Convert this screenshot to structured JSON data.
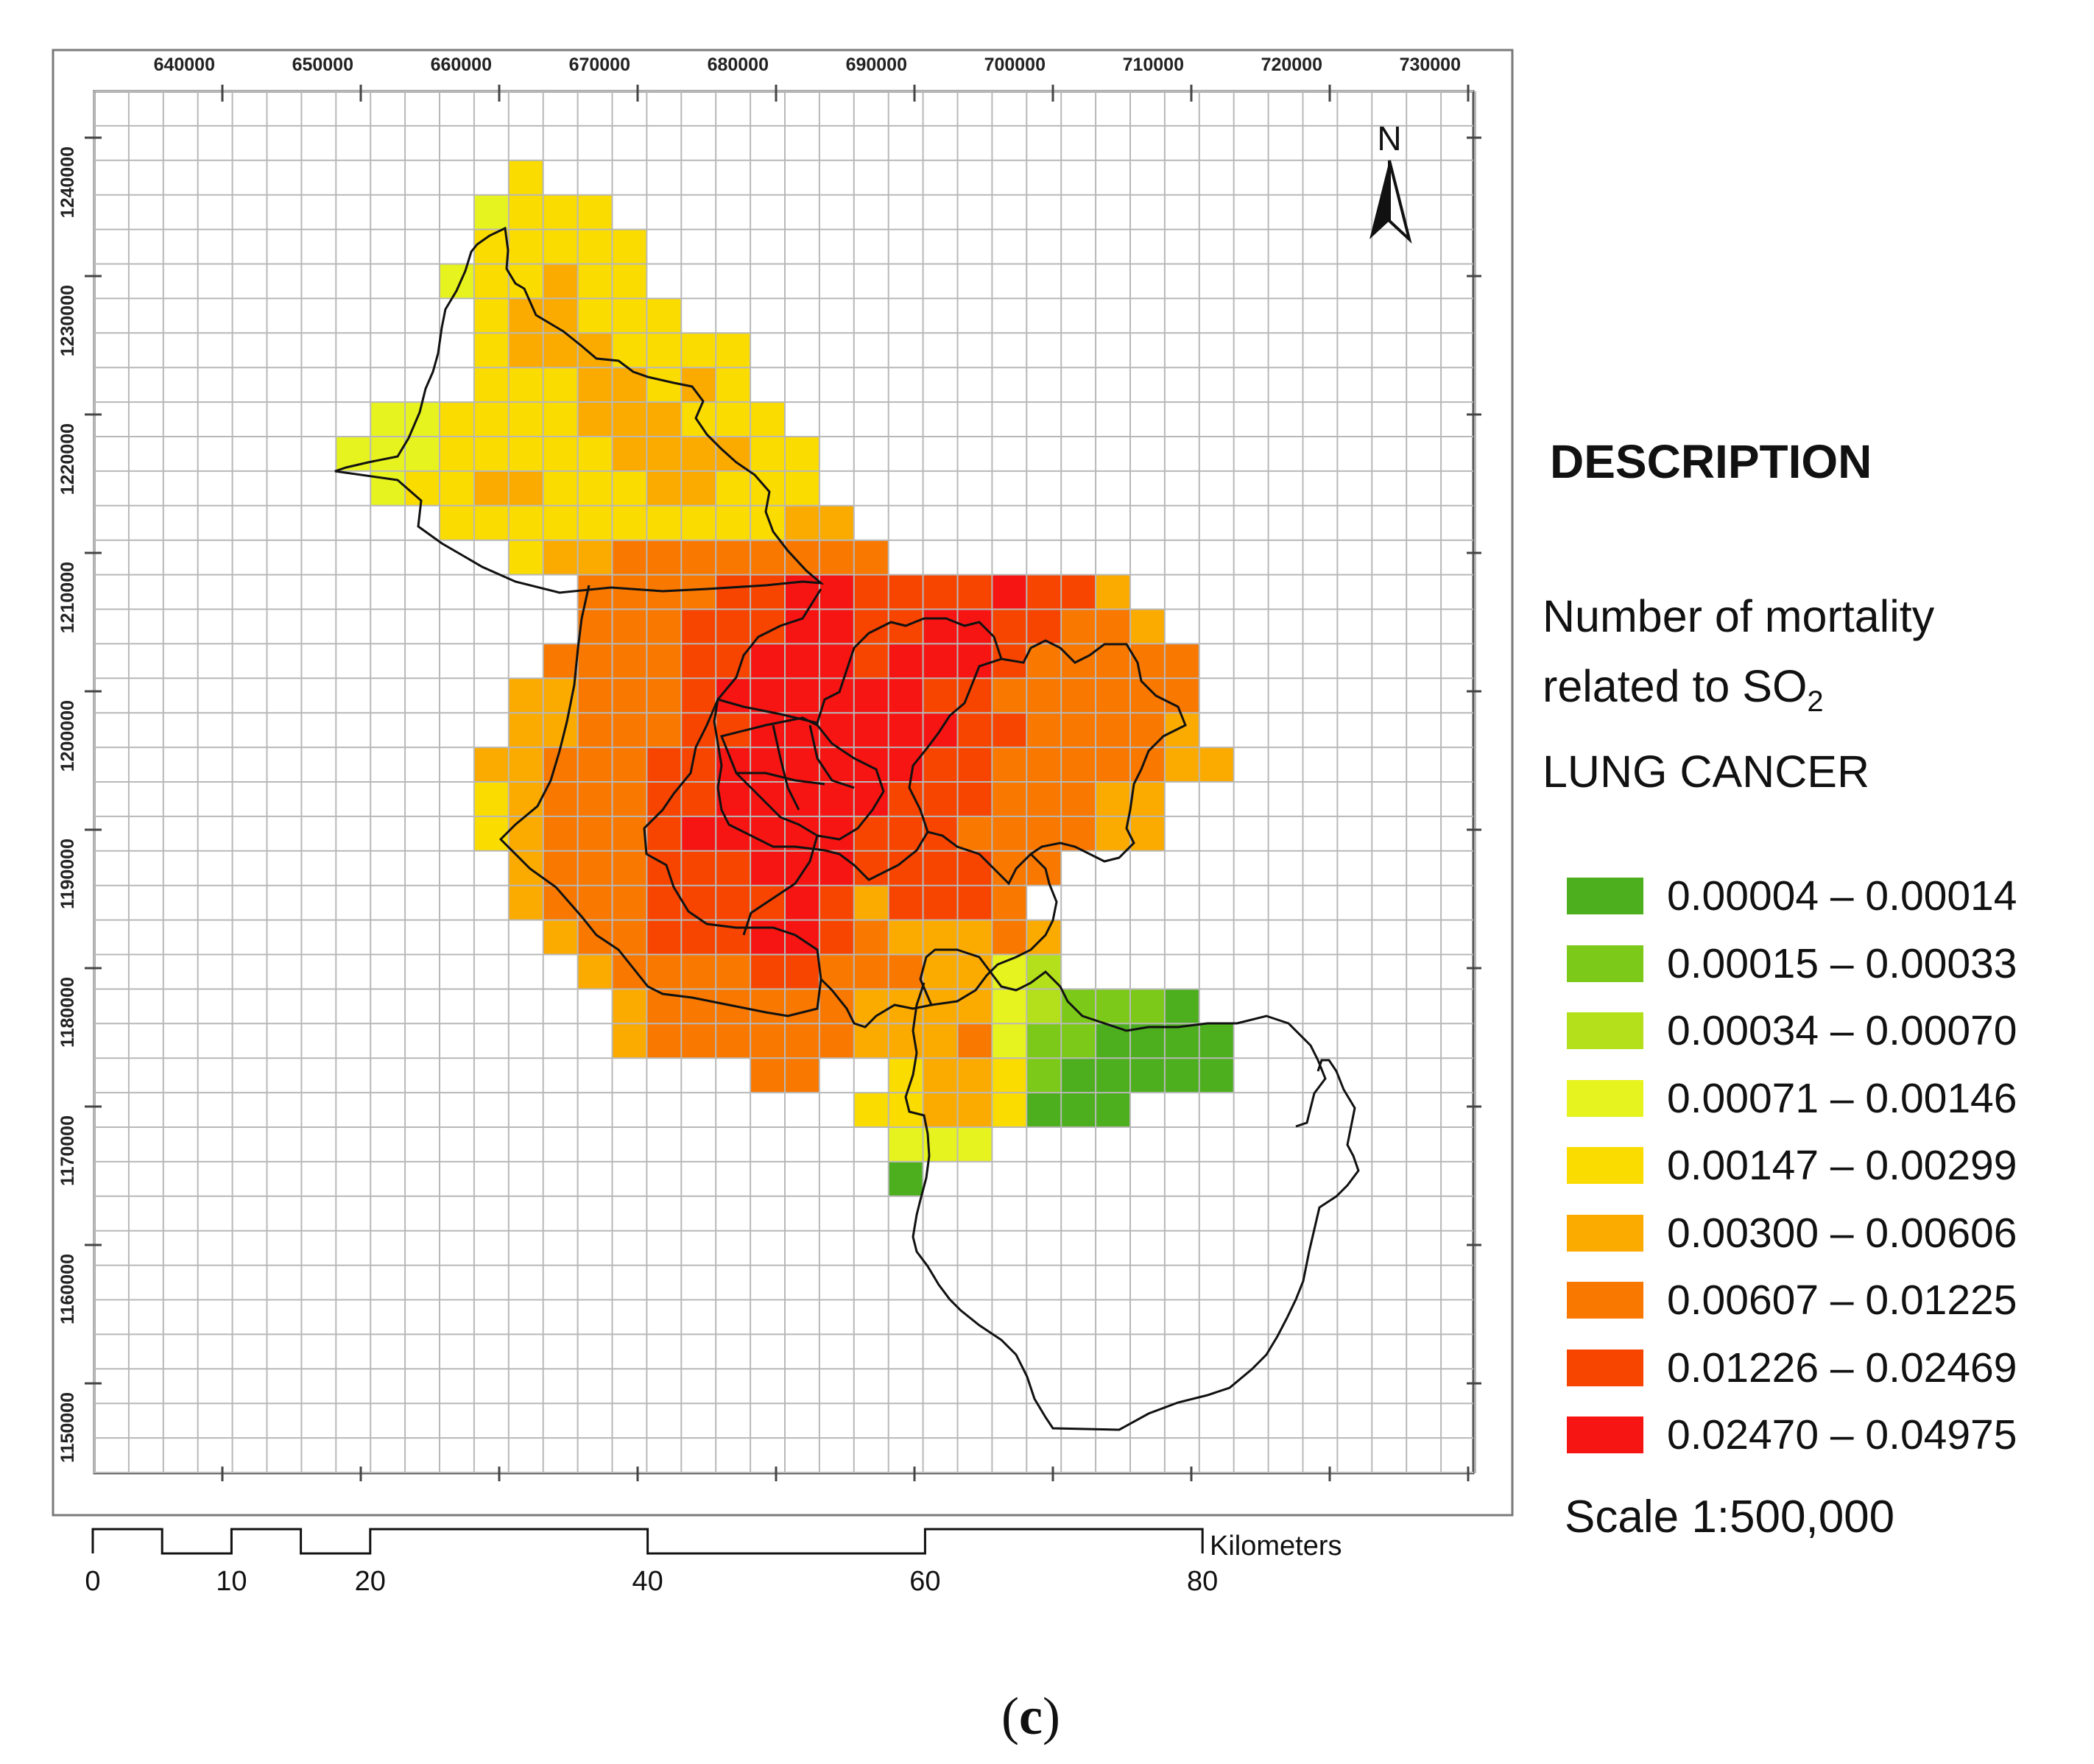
{
  "map": {
    "x_axis_labels": [
      "640000",
      "650000",
      "660000",
      "670000",
      "680000",
      "690000",
      "700000",
      "710000",
      "720000",
      "730000"
    ],
    "y_axis_labels": [
      "1240000",
      "1230000",
      "1220000",
      "1210000",
      "1200000",
      "1190000",
      "1180000",
      "1170000",
      "1160000",
      "1150000"
    ],
    "north_arrow_label": "N",
    "scalebar": {
      "ticks": [
        "0",
        "10",
        "20",
        "40",
        "60",
        "80"
      ],
      "unit": "Kilometers"
    },
    "colors": {
      "grid": "#b8b8b8",
      "frame": "#7a7a7a",
      "boundary": "#111111"
    }
  },
  "legend": {
    "heading": "DESCRIPTION",
    "description_line1": "Number of mortality",
    "description_line2_prefix": "related to SO",
    "description_line2_sub": "2",
    "description_line3": "LUNG CANCER",
    "classes": [
      {
        "label": "0.00004 – 0.00014",
        "color": "#4daf1e"
      },
      {
        "label": "0.00015 – 0.00033",
        "color": "#7cc91a"
      },
      {
        "label": "0.00034 – 0.00070",
        "color": "#b3e01a"
      },
      {
        "label": "0.00071 – 0.00146",
        "color": "#e7f31f"
      },
      {
        "label": "0.00147 – 0.00299",
        "color": "#fbdc00"
      },
      {
        "label": "0.00300 – 0.00606",
        "color": "#fbab00"
      },
      {
        "label": "0.00607 – 0.01225",
        "color": "#f87800"
      },
      {
        "label": "0.01226 – 0.02469",
        "color": "#f74500"
      },
      {
        "label": "0.02470 – 0.04975",
        "color": "#f61513"
      }
    ],
    "scale_text": "Scale 1:500,000"
  },
  "caption": {
    "open": "(",
    "letter": "c",
    "close": ")"
  }
}
